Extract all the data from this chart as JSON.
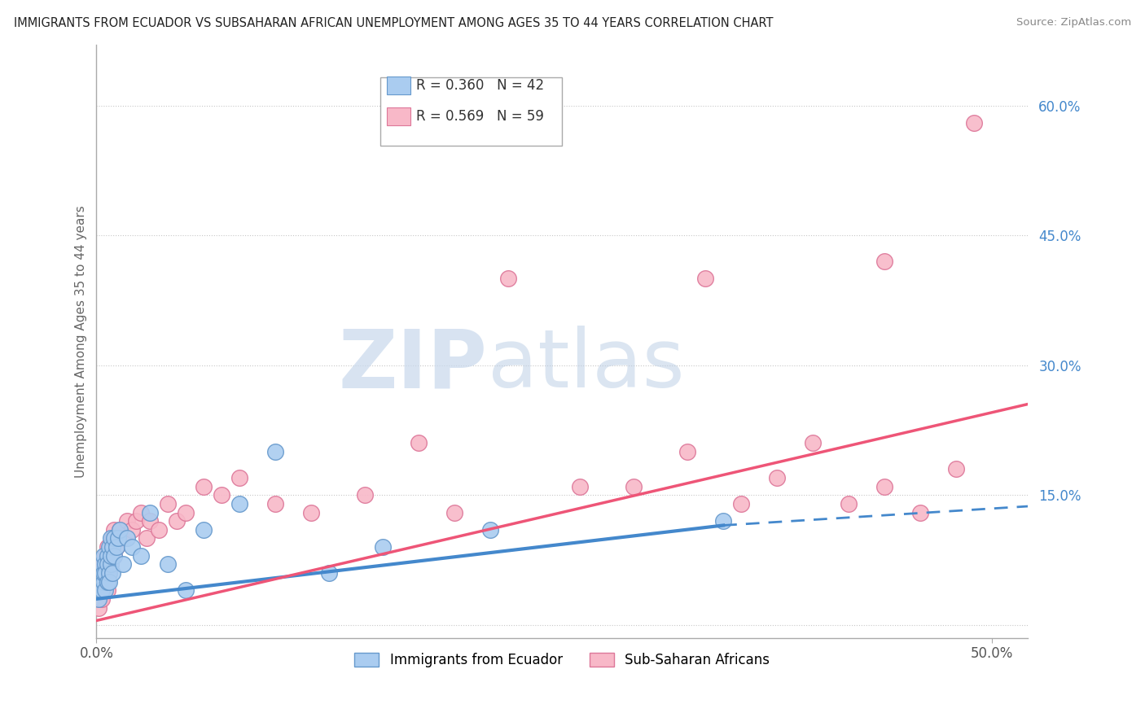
{
  "title": "IMMIGRANTS FROM ECUADOR VS SUBSAHARAN AFRICAN UNEMPLOYMENT AMONG AGES 35 TO 44 YEARS CORRELATION CHART",
  "source": "Source: ZipAtlas.com",
  "ylabel": "Unemployment Among Ages 35 to 44 years",
  "xlim": [
    0.0,
    0.52
  ],
  "ylim": [
    -0.015,
    0.67
  ],
  "yticks_right": [
    0.0,
    0.15,
    0.3,
    0.45,
    0.6
  ],
  "yticklabels_right": [
    "",
    "15.0%",
    "30.0%",
    "45.0%",
    "60.0%"
  ],
  "grid_color": "#c8c8c8",
  "background_color": "#ffffff",
  "watermark_zip": "ZIP",
  "watermark_atlas": "atlas",
  "series1_color": "#aaccf0",
  "series1_edge": "#6699cc",
  "series2_color": "#f8b8c8",
  "series2_edge": "#dd7799",
  "line1_color": "#4488cc",
  "line2_color": "#ee5577",
  "legend_label1": "Immigrants from Ecuador",
  "legend_label2": "Sub-Saharan Africans",
  "ecuador_x": [
    0.001,
    0.002,
    0.002,
    0.003,
    0.003,
    0.003,
    0.004,
    0.004,
    0.004,
    0.005,
    0.005,
    0.005,
    0.006,
    0.006,
    0.006,
    0.007,
    0.007,
    0.007,
    0.008,
    0.008,
    0.008,
    0.009,
    0.009,
    0.01,
    0.01,
    0.011,
    0.012,
    0.013,
    0.015,
    0.017,
    0.02,
    0.025,
    0.03,
    0.04,
    0.05,
    0.06,
    0.08,
    0.1,
    0.13,
    0.16,
    0.22,
    0.35
  ],
  "ecuador_y": [
    0.03,
    0.05,
    0.04,
    0.06,
    0.04,
    0.07,
    0.05,
    0.06,
    0.08,
    0.04,
    0.07,
    0.06,
    0.05,
    0.08,
    0.07,
    0.06,
    0.09,
    0.05,
    0.07,
    0.08,
    0.1,
    0.06,
    0.09,
    0.08,
    0.1,
    0.09,
    0.1,
    0.11,
    0.07,
    0.1,
    0.09,
    0.08,
    0.13,
    0.07,
    0.04,
    0.11,
    0.14,
    0.2,
    0.06,
    0.09,
    0.11,
    0.12
  ],
  "subsaharan_x": [
    0.001,
    0.001,
    0.002,
    0.002,
    0.003,
    0.003,
    0.003,
    0.004,
    0.004,
    0.004,
    0.005,
    0.005,
    0.005,
    0.006,
    0.006,
    0.006,
    0.007,
    0.007,
    0.008,
    0.008,
    0.009,
    0.01,
    0.01,
    0.011,
    0.012,
    0.013,
    0.015,
    0.017,
    0.02,
    0.022,
    0.025,
    0.028,
    0.03,
    0.035,
    0.04,
    0.045,
    0.05,
    0.06,
    0.07,
    0.08,
    0.1,
    0.12,
    0.15,
    0.18,
    0.2,
    0.23,
    0.27,
    0.3,
    0.33,
    0.36,
    0.38,
    0.4,
    0.42,
    0.44,
    0.46,
    0.48,
    0.49,
    0.34,
    0.44
  ],
  "subsaharan_y": [
    0.02,
    0.04,
    0.03,
    0.05,
    0.04,
    0.06,
    0.03,
    0.05,
    0.07,
    0.04,
    0.06,
    0.08,
    0.05,
    0.07,
    0.04,
    0.09,
    0.06,
    0.08,
    0.07,
    0.09,
    0.1,
    0.08,
    0.11,
    0.09,
    0.1,
    0.11,
    0.1,
    0.12,
    0.11,
    0.12,
    0.13,
    0.1,
    0.12,
    0.11,
    0.14,
    0.12,
    0.13,
    0.16,
    0.15,
    0.17,
    0.14,
    0.13,
    0.15,
    0.21,
    0.13,
    0.4,
    0.16,
    0.16,
    0.2,
    0.14,
    0.17,
    0.21,
    0.14,
    0.16,
    0.13,
    0.18,
    0.58,
    0.4,
    0.42
  ],
  "line1_x0": 0.0,
  "line1_y0": 0.03,
  "line1_x1": 0.35,
  "line1_y1": 0.115,
  "line1_dash_x0": 0.35,
  "line1_dash_y0": 0.115,
  "line1_dash_x1": 0.52,
  "line1_dash_y1": 0.137,
  "line2_x0": 0.0,
  "line2_y0": 0.005,
  "line2_x1": 0.52,
  "line2_y1": 0.255
}
